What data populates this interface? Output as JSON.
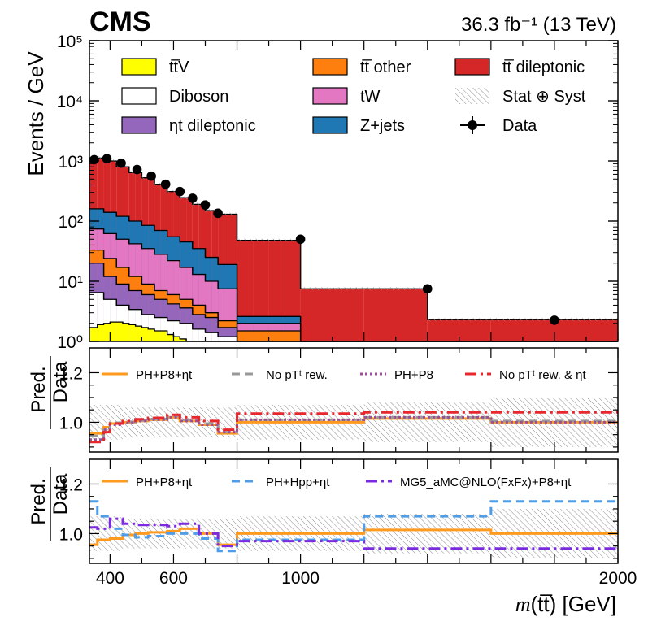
{
  "header": {
    "experiment": "CMS",
    "lumi": "36.3 fb⁻¹ (13 TeV)"
  },
  "x_axis_label": "m(tt̅) [GeV]",
  "chart_data": [
    {
      "type": "bar",
      "panel": "main",
      "stacked": true,
      "log_y": true,
      "ylabel": "Events / GeV",
      "xlim": [
        335,
        2000
      ],
      "ylim": [
        1,
        100000
      ],
      "x_ticks": [
        400,
        600,
        1000,
        2000
      ],
      "y_ticks": [
        "10⁰",
        "10¹",
        "10²",
        "10³",
        "10⁴",
        "10⁵"
      ],
      "bin_edges": [
        335,
        360,
        380,
        400,
        420,
        440,
        460,
        480,
        500,
        520,
        540,
        560,
        580,
        600,
        620,
        640,
        660,
        680,
        700,
        720,
        740,
        760,
        800,
        850,
        900,
        950,
        1000,
        1200,
        1400,
        1600,
        2000
      ],
      "layers": [
        {
          "name": "tt̅V",
          "color": "#ffff00",
          "top": [
            1.7,
            1.9,
            2.0,
            2.1,
            2.1,
            2.0,
            1.9,
            1.8,
            1.7,
            1.6,
            1.5,
            1.5,
            1.3,
            1.2,
            1.1,
            1.0,
            1.0,
            1.0,
            1.0,
            1.0,
            1.0,
            1.0,
            1.0,
            1.0,
            1.0,
            1.0,
            1.0,
            1.0,
            1.0,
            1.0
          ]
        },
        {
          "name": "Diboson",
          "color": "#ffffff",
          "top": [
            6.5,
            6.5,
            5.0,
            5.0,
            4.0,
            4.0,
            3.4,
            3.4,
            2.8,
            2.8,
            2.5,
            2.5,
            2.2,
            2.2,
            2.0,
            2.0,
            1.6,
            1.6,
            1.4,
            1.4,
            1.2,
            1.2,
            1.0,
            1.0,
            1.0,
            1.0,
            1.0,
            1.0,
            1.0,
            1.0
          ]
        },
        {
          "name": "ηt dileptonic",
          "color": "#9467bd",
          "top": [
            20,
            20,
            12,
            12,
            9,
            9,
            7,
            7,
            6,
            6,
            5,
            5,
            4.2,
            4.2,
            3.6,
            3.6,
            2.8,
            2.8,
            2.5,
            2.5,
            1.7,
            1.7,
            1.0,
            1.0,
            1.0,
            1.0,
            1.0,
            1.0,
            1.0,
            1.0
          ]
        },
        {
          "name": "tt̅ other",
          "color": "#ff7f0e",
          "top": [
            33,
            33,
            24,
            24,
            17,
            17,
            12,
            12,
            9,
            9,
            7,
            7,
            6,
            6,
            5,
            5,
            4,
            4,
            3,
            3,
            2.2,
            2.2,
            1.5,
            1.5,
            1.5,
            1.5,
            1.0,
            1.0,
            1.0,
            1.0
          ]
        },
        {
          "name": "tW",
          "color": "#e377c2",
          "top": [
            74,
            74,
            62,
            62,
            50,
            50,
            42,
            42,
            35,
            35,
            28,
            28,
            22,
            22,
            17,
            17,
            13,
            13,
            10,
            10,
            7.5,
            7.5,
            2.0,
            2.0,
            2.0,
            2.0,
            1.0,
            1.0,
            1.0,
            1.0
          ]
        },
        {
          "name": "Z+jets",
          "color": "#1f77b4",
          "top": [
            160,
            160,
            140,
            140,
            120,
            120,
            100,
            100,
            85,
            85,
            70,
            70,
            55,
            55,
            45,
            45,
            35,
            35,
            25,
            25,
            19,
            19,
            2.6,
            2.6,
            2.6,
            2.6,
            1.0,
            1.0,
            1.0,
            1.0
          ]
        },
        {
          "name": "tt̅ dileptonic",
          "color": "#d62728",
          "top": [
            1120,
            1120,
            1000,
            1000,
            800,
            800,
            640,
            640,
            525,
            525,
            410,
            410,
            310,
            310,
            245,
            245,
            190,
            190,
            150,
            150,
            130,
            130,
            48,
            48,
            48,
            48,
            7.5,
            7.5,
            2.3,
            2.3
          ]
        }
      ],
      "data_points": {
        "name": "Data",
        "x": [
          350,
          390,
          435,
          485,
          530,
          575,
          620,
          660,
          700,
          740,
          1000,
          1400,
          1800
        ],
        "y": [
          1050,
          1090,
          920,
          720,
          560,
          410,
          310,
          240,
          185,
          135,
          50,
          7.5,
          2.25
        ]
      },
      "band": {
        "name": "Stat ⊕ Syst"
      },
      "legend": [
        "tt̅V",
        "tt̅ other",
        "tt̅ dileptonic",
        "Diboson",
        "tW",
        "Stat ⊕ Syst",
        "ηt dileptonic",
        "Z+jets",
        "Data"
      ]
    },
    {
      "type": "line",
      "panel": "ratio-1",
      "ylabel": "Pred. / Data",
      "ylim": [
        0.88,
        1.3
      ],
      "y_ticks": [
        1.0,
        1.2
      ],
      "bin_edges": [
        335,
        380,
        400,
        440,
        480,
        520,
        580,
        620,
        680,
        740,
        800,
        1200,
        1600,
        2000
      ],
      "band_halfwidth": [
        0.07,
        0.07,
        0.07,
        0.06,
        0.06,
        0.06,
        0.06,
        0.06,
        0.06,
        0.06,
        0.07,
        0.08,
        0.1
      ],
      "series": [
        {
          "name": "PH+P8+ηt",
          "color": "#ff9a1f",
          "dash": "",
          "values": [
            0.955,
            0.98,
            0.995,
            1.0,
            1.005,
            1.01,
            1.02,
            1.005,
            0.99,
            0.955,
            1.0,
            1.015,
            1.0
          ]
        },
        {
          "name": "No pTᵗ rew.",
          "color": "#999999",
          "dash": "10,6",
          "values": [
            0.945,
            0.975,
            0.998,
            1.002,
            1.007,
            1.013,
            1.025,
            1.01,
            0.995,
            0.96,
            1.01,
            1.02,
            1.005
          ]
        },
        {
          "name": "PH+P8",
          "color": "#9b4f96",
          "dash": "3,3",
          "values": [
            0.93,
            0.97,
            0.99,
            0.998,
            1.005,
            1.01,
            1.02,
            1.005,
            0.99,
            0.96,
            1.01,
            1.02,
            1.0
          ]
        },
        {
          "name": "No pTᵗ rew. & ηt",
          "color": "#e8272c",
          "dash": "14,5,3,5",
          "values": [
            0.92,
            0.96,
            0.995,
            1.005,
            1.012,
            1.018,
            1.03,
            1.02,
            1.005,
            0.97,
            1.035,
            1.04,
            1.04
          ]
        }
      ]
    },
    {
      "type": "line",
      "panel": "ratio-2",
      "ylabel": "Pred. / Data",
      "ylim": [
        0.88,
        1.3
      ],
      "y_ticks": [
        1.0,
        1.2
      ],
      "bin_edges": [
        335,
        360,
        400,
        440,
        480,
        520,
        580,
        620,
        680,
        740,
        800,
        1200,
        1600,
        2000
      ],
      "band_halfwidth": [
        0.07,
        0.07,
        0.07,
        0.06,
        0.06,
        0.06,
        0.06,
        0.06,
        0.06,
        0.06,
        0.07,
        0.08,
        0.1
      ],
      "series": [
        {
          "name": "PH+P8+ηt",
          "color": "#ff9a1f",
          "dash": "",
          "values": [
            0.955,
            0.975,
            0.98,
            0.995,
            1.0,
            1.005,
            1.01,
            1.02,
            1.0,
            0.955,
            1.0,
            1.015,
            1.0
          ]
        },
        {
          "name": "PH+Hpp+ηt",
          "color": "#4f9de8",
          "dash": "10,6",
          "values": [
            1.13,
            1.07,
            1.02,
            0.995,
            0.985,
            0.99,
            1.0,
            1.0,
            0.98,
            0.93,
            0.975,
            1.07,
            1.13
          ]
        },
        {
          "name": "MG5_aMC@NLO(FxFx)+P8+ηt",
          "color": "#7b2ae0",
          "dash": "14,5,3,5",
          "values": [
            1.025,
            1.02,
            1.06,
            1.04,
            1.035,
            1.035,
            1.03,
            1.04,
            1.0,
            0.95,
            0.97,
            0.94,
            0.94
          ]
        }
      ]
    }
  ]
}
